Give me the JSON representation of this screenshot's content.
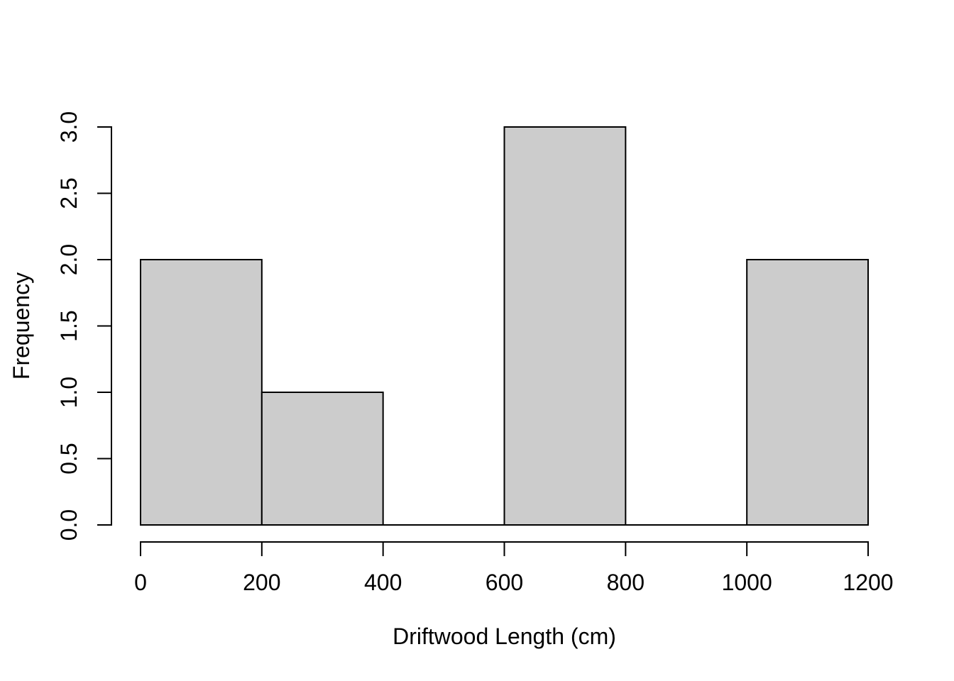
{
  "figure": {
    "background": "#ffffff",
    "bar_fill": "#cccccc",
    "bar_stroke": "#000000",
    "axis_color": "#000000"
  },
  "chart_data": {
    "type": "bar",
    "subtype": "histogram",
    "title": "",
    "xlabel": "Driftwood Length (cm)",
    "ylabel": "Frequency",
    "bin_edges": [
      0,
      200,
      400,
      600,
      800,
      1000,
      1200
    ],
    "counts": [
      2,
      1,
      0,
      3,
      0,
      2
    ],
    "xlim": [
      0,
      1200
    ],
    "ylim": [
      0,
      3
    ],
    "x_ticks": [
      0,
      200,
      400,
      600,
      800,
      1000,
      1200
    ],
    "x_tick_labels": [
      "0",
      "200",
      "400",
      "600",
      "800",
      "1000",
      "1200"
    ],
    "y_ticks": [
      0,
      0.5,
      1,
      1.5,
      2,
      2.5,
      3
    ],
    "y_tick_labels": [
      "0.0",
      "0.5",
      "1.0",
      "1.5",
      "2.0",
      "2.5",
      "3.0"
    ],
    "grid": false,
    "legend": null
  }
}
